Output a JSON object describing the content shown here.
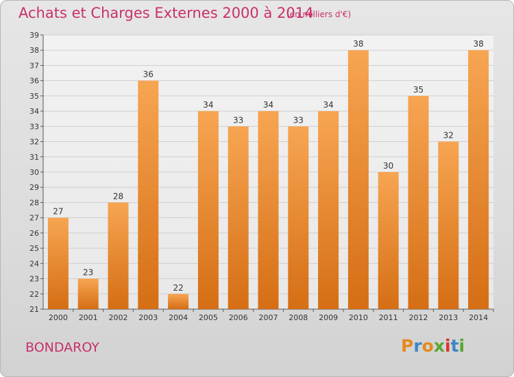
{
  "header": {
    "title": "Achats et Charges Externes 2000 à 2014",
    "subtitle": "(en milliers d'€)"
  },
  "footer": {
    "place": "BONDAROY",
    "logo_text": "Proxiti",
    "logo_colors": [
      "#e58a1e",
      "#3d86c6",
      "#e58a1e",
      "#5aa536",
      "#d9342b",
      "#3d86c6",
      "#5aa536"
    ]
  },
  "colors": {
    "bar_top": "#f7a552",
    "bar_bottom": "#d56e14",
    "text": "#c8306b",
    "grid": "#cfcfcf"
  },
  "chart_data": {
    "type": "bar",
    "title": "Achats et Charges Externes 2000 à 2014",
    "subtitle": "(en milliers d'€)",
    "categories": [
      "2000",
      "2001",
      "2002",
      "2003",
      "2004",
      "2005",
      "2006",
      "2007",
      "2008",
      "2009",
      "2010",
      "2011",
      "2012",
      "2013",
      "2014"
    ],
    "values": [
      27,
      23,
      28,
      36,
      22,
      34,
      33,
      34,
      33,
      34,
      38,
      30,
      35,
      32,
      38
    ],
    "ylim": [
      21,
      39
    ],
    "yticks": [
      21,
      22,
      23,
      24,
      25,
      26,
      27,
      28,
      29,
      30,
      31,
      32,
      33,
      34,
      35,
      36,
      37,
      38,
      39
    ],
    "grid": true,
    "data_labels": true
  }
}
